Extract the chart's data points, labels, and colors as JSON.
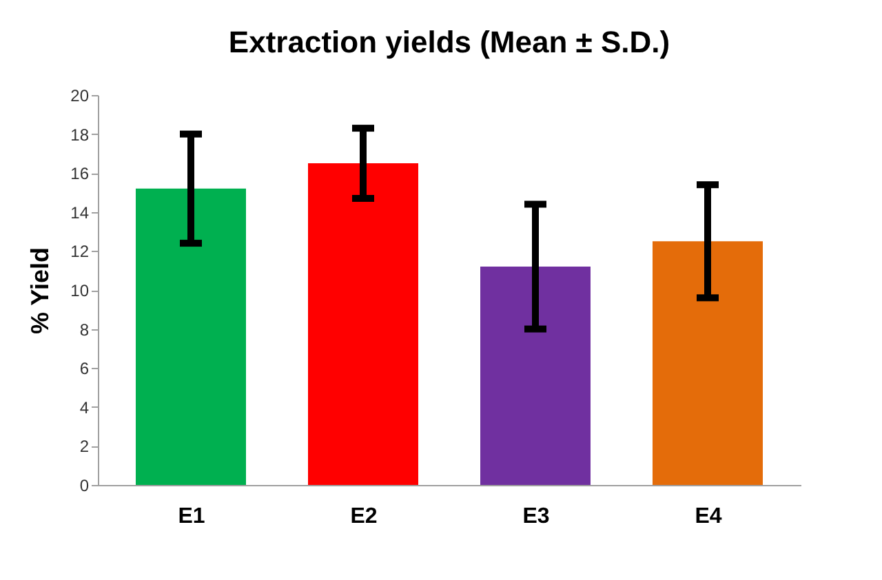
{
  "chart_data": {
    "type": "bar",
    "title": "Extraction yields (Mean ± S.D.)",
    "ylabel": "% Yield",
    "categories": [
      "E1",
      "E2",
      "E3",
      "E4"
    ],
    "values": [
      15.2,
      16.5,
      11.2,
      12.5
    ],
    "colors": [
      "#00b050",
      "#ff0000",
      "#7030a0",
      "#e46c0a"
    ],
    "errors": [
      2.8,
      1.8,
      3.2,
      2.9
    ],
    "ylim": [
      0,
      20
    ],
    "yticks": [
      0,
      2,
      4,
      6,
      8,
      10,
      12,
      14,
      16,
      18,
      20
    ],
    "grid": false
  }
}
